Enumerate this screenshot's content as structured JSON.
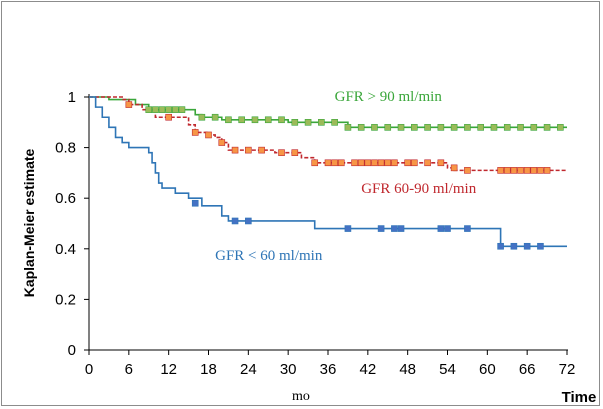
{
  "chart_data": {
    "type": "line",
    "title": "",
    "ylabel": "Kaplan-Meier estimate",
    "xlabel": "mo",
    "x_axis_end_label": "Time",
    "xlim": [
      0,
      72
    ],
    "ylim": [
      0,
      1
    ],
    "xticks": [
      0,
      6,
      12,
      18,
      24,
      30,
      36,
      42,
      48,
      54,
      60,
      66,
      72
    ],
    "yticks": [
      0,
      0.2,
      0.4,
      0.6,
      0.8,
      1
    ],
    "ytick_labels": [
      "0",
      "0.2",
      "0.4",
      "0.6",
      "0.8",
      "1"
    ],
    "grid": false,
    "legend": "inline labels",
    "series": [
      {
        "name": "GFR > 90 ml/min",
        "color": "#3aa63a",
        "marker_color": "#9bbb59",
        "line_style": "solid",
        "steps": [
          [
            0,
            1
          ],
          [
            2,
            1
          ],
          [
            3,
            0.99
          ],
          [
            7,
            0.97
          ],
          [
            9,
            0.95
          ],
          [
            16,
            0.93
          ],
          [
            17,
            0.92
          ],
          [
            20,
            0.91
          ],
          [
            30,
            0.9
          ],
          [
            39,
            0.88
          ],
          [
            72,
            0.88
          ]
        ],
        "censored": [
          [
            9,
            0.95
          ],
          [
            10,
            0.95
          ],
          [
            11,
            0.95
          ],
          [
            12,
            0.95
          ],
          [
            13,
            0.95
          ],
          [
            14,
            0.95
          ],
          [
            17,
            0.92
          ],
          [
            19,
            0.92
          ],
          [
            21,
            0.91
          ],
          [
            23,
            0.91
          ],
          [
            25,
            0.91
          ],
          [
            27,
            0.91
          ],
          [
            29,
            0.91
          ],
          [
            31,
            0.9
          ],
          [
            33,
            0.9
          ],
          [
            35,
            0.9
          ],
          [
            37,
            0.9
          ],
          [
            39,
            0.88
          ],
          [
            41,
            0.88
          ],
          [
            43,
            0.88
          ],
          [
            45,
            0.88
          ],
          [
            47,
            0.88
          ],
          [
            49,
            0.88
          ],
          [
            51,
            0.88
          ],
          [
            53,
            0.88
          ],
          [
            55,
            0.88
          ],
          [
            57,
            0.88
          ],
          [
            59,
            0.88
          ],
          [
            61,
            0.88
          ],
          [
            63,
            0.88
          ],
          [
            65,
            0.88
          ],
          [
            67,
            0.88
          ],
          [
            69,
            0.88
          ],
          [
            71,
            0.88
          ]
        ]
      },
      {
        "name": "GFR 60-90 ml/min",
        "color": "#c0282e",
        "marker_color": "#f79646",
        "line_style": "dashed",
        "steps": [
          [
            0,
            1
          ],
          [
            5,
            0.99
          ],
          [
            6,
            0.97
          ],
          [
            8,
            0.95
          ],
          [
            10,
            0.92
          ],
          [
            15,
            0.89
          ],
          [
            16,
            0.86
          ],
          [
            18,
            0.85
          ],
          [
            19,
            0.84
          ],
          [
            20,
            0.82
          ],
          [
            21,
            0.79
          ],
          [
            28,
            0.78
          ],
          [
            32,
            0.76
          ],
          [
            34,
            0.74
          ],
          [
            54,
            0.72
          ],
          [
            55,
            0.71
          ],
          [
            72,
            0.71
          ]
        ],
        "censored": [
          [
            6,
            0.97
          ],
          [
            12,
            0.92
          ],
          [
            16,
            0.86
          ],
          [
            18,
            0.85
          ],
          [
            20,
            0.82
          ],
          [
            22,
            0.79
          ],
          [
            24,
            0.79
          ],
          [
            26,
            0.79
          ],
          [
            29,
            0.78
          ],
          [
            31,
            0.78
          ],
          [
            34,
            0.74
          ],
          [
            36,
            0.74
          ],
          [
            37,
            0.74
          ],
          [
            38,
            0.74
          ],
          [
            40,
            0.74
          ],
          [
            41,
            0.74
          ],
          [
            42,
            0.74
          ],
          [
            43,
            0.74
          ],
          [
            44,
            0.74
          ],
          [
            45,
            0.74
          ],
          [
            46,
            0.74
          ],
          [
            48,
            0.74
          ],
          [
            49,
            0.74
          ],
          [
            51,
            0.74
          ],
          [
            53,
            0.74
          ],
          [
            55,
            0.72
          ],
          [
            57,
            0.71
          ],
          [
            62,
            0.71
          ],
          [
            63,
            0.71
          ],
          [
            64,
            0.71
          ],
          [
            65,
            0.71
          ],
          [
            66,
            0.71
          ],
          [
            67,
            0.71
          ],
          [
            68,
            0.71
          ],
          [
            69,
            0.71
          ]
        ]
      },
      {
        "name": "GFR < 60 ml/min",
        "color": "#2e75b6",
        "marker_color": "#4472c4",
        "line_style": "solid",
        "steps": [
          [
            0,
            1
          ],
          [
            1,
            0.96
          ],
          [
            2,
            0.92
          ],
          [
            3,
            0.88
          ],
          [
            4,
            0.84
          ],
          [
            5,
            0.82
          ],
          [
            6,
            0.8
          ],
          [
            9,
            0.78
          ],
          [
            9.5,
            0.74
          ],
          [
            10,
            0.7
          ],
          [
            10.5,
            0.66
          ],
          [
            11,
            0.64
          ],
          [
            13,
            0.62
          ],
          [
            15,
            0.6
          ],
          [
            17,
            0.57
          ],
          [
            20,
            0.53
          ],
          [
            21,
            0.51
          ],
          [
            34,
            0.48
          ],
          [
            62,
            0.41
          ],
          [
            72,
            0.41
          ]
        ],
        "censored": [
          [
            16,
            0.58
          ],
          [
            22,
            0.51
          ],
          [
            24,
            0.51
          ],
          [
            39,
            0.48
          ],
          [
            44,
            0.48
          ],
          [
            46,
            0.48
          ],
          [
            47,
            0.48
          ],
          [
            53,
            0.48
          ],
          [
            54,
            0.48
          ],
          [
            57,
            0.48
          ],
          [
            62,
            0.41
          ],
          [
            64,
            0.41
          ],
          [
            66,
            0.41
          ],
          [
            68,
            0.41
          ]
        ]
      }
    ],
    "annotations": [
      {
        "text": "GFR > 90 ml/min",
        "x": 37,
        "y": 0.985,
        "color": "#3aa63a"
      },
      {
        "text": "GFR 60-90 ml/min",
        "x": 41,
        "y": 0.62,
        "color": "#c0282e"
      },
      {
        "text": "GFR < 60 ml/min",
        "x": 19,
        "y": 0.355,
        "color": "#2e75b6"
      }
    ]
  }
}
